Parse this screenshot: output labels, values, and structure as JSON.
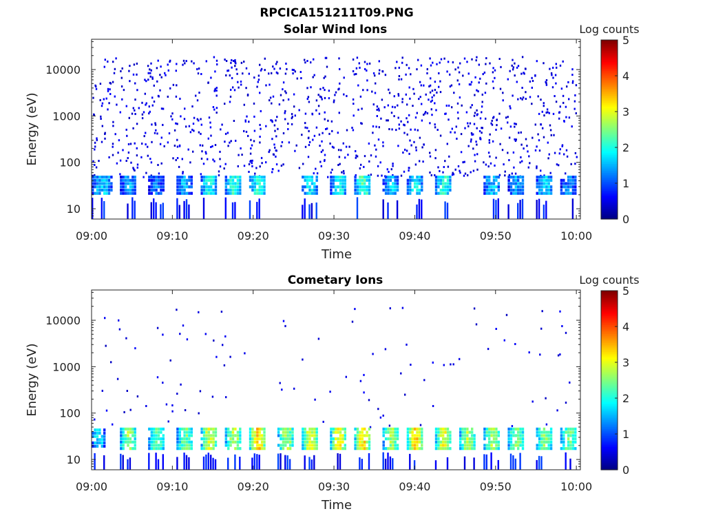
{
  "figure": {
    "title": "RPCICA151211T09.PNG"
  },
  "colorbar": {
    "colors": [
      "#00007f",
      "#0000ff",
      "#007fff",
      "#00ffff",
      "#7fff7f",
      "#ffff00",
      "#ff7f00",
      "#ff0000",
      "#7f0000"
    ]
  },
  "chart_data": [
    {
      "type": "heatmap",
      "title": "Solar Wind Ions",
      "xlabel": "Time",
      "ylabel": "Energy (eV)",
      "x_ticks": [
        "09:00",
        "09:10",
        "09:20",
        "09:30",
        "09:40",
        "09:50",
        "10:00"
      ],
      "x_tick_values_min": [
        0,
        10,
        20,
        30,
        40,
        50,
        60
      ],
      "xlim_min": [
        0,
        60.5
      ],
      "y_scale": "log",
      "y_ticks": [
        "10",
        "100",
        "1000",
        "10000"
      ],
      "y_tick_values": [
        10,
        100,
        1000,
        10000
      ],
      "ylim": [
        6,
        45000
      ],
      "colorbar": {
        "label": "Log counts",
        "range": [
          0,
          5
        ],
        "ticks": [
          "0",
          "1",
          "2",
          "3",
          "4",
          "5"
        ]
      },
      "bands": [
        {
          "t_start": 0.0,
          "t_end": 2.5,
          "e_low": 20,
          "e_high": 45,
          "log_counts": 1.6
        },
        {
          "t_start": 3.5,
          "t_end": 5.5,
          "e_low": 20,
          "e_high": 45,
          "log_counts": 1.4
        },
        {
          "t_start": 7.0,
          "t_end": 8.8,
          "e_low": 20,
          "e_high": 45,
          "log_counts": 1.2
        },
        {
          "t_start": 10.5,
          "t_end": 12.3,
          "e_low": 20,
          "e_high": 45,
          "log_counts": 1.5
        },
        {
          "t_start": 13.5,
          "t_end": 15.5,
          "e_low": 20,
          "e_high": 45,
          "log_counts": 2.0
        },
        {
          "t_start": 16.5,
          "t_end": 18.5,
          "e_low": 20,
          "e_high": 45,
          "log_counts": 2.1
        },
        {
          "t_start": 19.5,
          "t_end": 21.5,
          "e_low": 20,
          "e_high": 45,
          "log_counts": 2.0
        },
        {
          "t_start": 26.0,
          "t_end": 28.0,
          "e_low": 20,
          "e_high": 45,
          "log_counts": 1.8
        },
        {
          "t_start": 29.5,
          "t_end": 31.5,
          "e_low": 20,
          "e_high": 45,
          "log_counts": 1.9
        },
        {
          "t_start": 32.5,
          "t_end": 34.5,
          "e_low": 20,
          "e_high": 45,
          "log_counts": 2.2
        },
        {
          "t_start": 36.0,
          "t_end": 38.0,
          "e_low": 20,
          "e_high": 45,
          "log_counts": 1.6
        },
        {
          "t_start": 39.0,
          "t_end": 41.0,
          "e_low": 20,
          "e_high": 45,
          "log_counts": 1.8
        },
        {
          "t_start": 42.5,
          "t_end": 44.5,
          "e_low": 20,
          "e_high": 45,
          "log_counts": 2.0
        },
        {
          "t_start": 48.5,
          "t_end": 50.5,
          "e_low": 20,
          "e_high": 45,
          "log_counts": 1.6
        },
        {
          "t_start": 51.5,
          "t_end": 53.5,
          "e_low": 20,
          "e_high": 45,
          "log_counts": 1.4
        },
        {
          "t_start": 55.0,
          "t_end": 57.0,
          "e_low": 20,
          "e_high": 45,
          "log_counts": 1.7
        },
        {
          "t_start": 58.0,
          "t_end": 60.0,
          "e_low": 20,
          "e_high": 45,
          "log_counts": 1.3
        }
      ],
      "background_log_counts": 0.3
    },
    {
      "type": "heatmap",
      "title": "Cometary Ions",
      "xlabel": "Time",
      "ylabel": "Energy (eV)",
      "x_ticks": [
        "09:00",
        "09:10",
        "09:20",
        "09:30",
        "09:40",
        "09:50",
        "10:00"
      ],
      "x_tick_values_min": [
        0,
        10,
        20,
        30,
        40,
        50,
        60
      ],
      "xlim_min": [
        0,
        60.5
      ],
      "y_scale": "log",
      "y_ticks": [
        "10",
        "100",
        "1000",
        "10000"
      ],
      "y_tick_values": [
        10,
        100,
        1000,
        10000
      ],
      "ylim": [
        6,
        45000
      ],
      "colorbar": {
        "label": "Log counts",
        "range": [
          0,
          5
        ],
        "ticks": [
          "0",
          "1",
          "2",
          "3",
          "4",
          "5"
        ]
      },
      "bands": [
        {
          "t_start": 0.0,
          "t_end": 1.5,
          "e_low": 18,
          "e_high": 45,
          "log_counts": 1.8
        },
        {
          "t_start": 3.5,
          "t_end": 5.5,
          "e_low": 16,
          "e_high": 45,
          "log_counts": 2.6
        },
        {
          "t_start": 7.0,
          "t_end": 9.0,
          "e_low": 16,
          "e_high": 45,
          "log_counts": 2.3
        },
        {
          "t_start": 10.5,
          "t_end": 12.5,
          "e_low": 16,
          "e_high": 45,
          "log_counts": 2.4
        },
        {
          "t_start": 13.5,
          "t_end": 15.5,
          "e_low": 16,
          "e_high": 45,
          "log_counts": 2.9
        },
        {
          "t_start": 16.5,
          "t_end": 18.5,
          "e_low": 16,
          "e_high": 45,
          "log_counts": 2.8
        },
        {
          "t_start": 19.5,
          "t_end": 21.5,
          "e_low": 16,
          "e_high": 45,
          "log_counts": 3.4
        },
        {
          "t_start": 23.0,
          "t_end": 25.0,
          "e_low": 16,
          "e_high": 45,
          "log_counts": 2.7
        },
        {
          "t_start": 26.0,
          "t_end": 28.0,
          "e_low": 16,
          "e_high": 45,
          "log_counts": 3.0
        },
        {
          "t_start": 29.5,
          "t_end": 31.5,
          "e_low": 16,
          "e_high": 45,
          "log_counts": 3.1
        },
        {
          "t_start": 32.5,
          "t_end": 34.5,
          "e_low": 16,
          "e_high": 45,
          "log_counts": 3.2
        },
        {
          "t_start": 36.0,
          "t_end": 38.0,
          "e_low": 16,
          "e_high": 45,
          "log_counts": 2.6
        },
        {
          "t_start": 39.0,
          "t_end": 41.0,
          "e_low": 16,
          "e_high": 45,
          "log_counts": 3.3
        },
        {
          "t_start": 42.5,
          "t_end": 44.5,
          "e_low": 16,
          "e_high": 45,
          "log_counts": 3.0
        },
        {
          "t_start": 45.5,
          "t_end": 47.5,
          "e_low": 16,
          "e_high": 45,
          "log_counts": 2.8
        },
        {
          "t_start": 48.5,
          "t_end": 50.5,
          "e_low": 16,
          "e_high": 45,
          "log_counts": 2.7
        },
        {
          "t_start": 51.5,
          "t_end": 53.5,
          "e_low": 16,
          "e_high": 45,
          "log_counts": 2.6
        },
        {
          "t_start": 55.0,
          "t_end": 57.0,
          "e_low": 16,
          "e_high": 45,
          "log_counts": 2.5
        },
        {
          "t_start": 58.0,
          "t_end": 60.0,
          "e_low": 16,
          "e_high": 45,
          "log_counts": 2.4
        }
      ],
      "background_log_counts": 0.3
    }
  ]
}
